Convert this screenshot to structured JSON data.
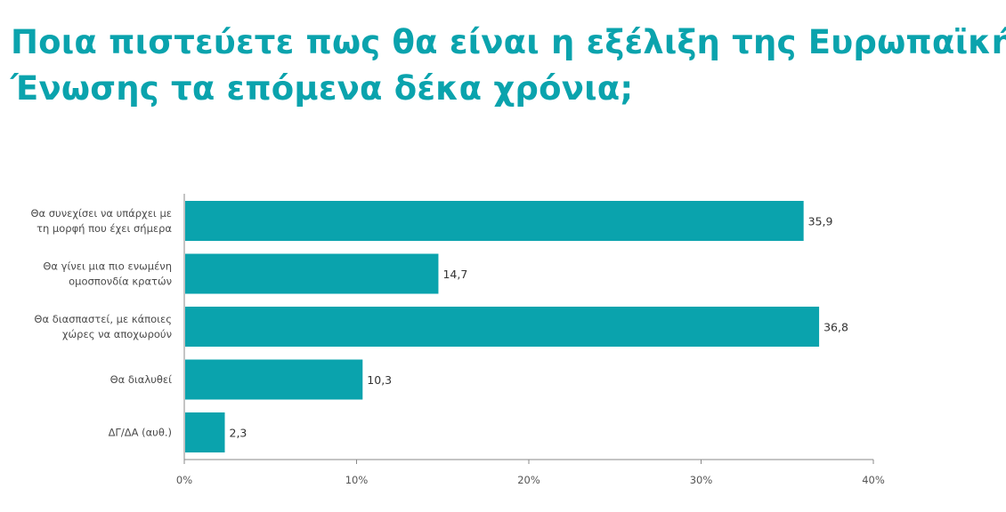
{
  "title": {
    "line1": "Ποια πιστεύετε πως θα είναι η εξέλιξη της Ευρωπαϊκής",
    "line2": "Ένωσης τα επόμενα δέκα χρόνια;"
  },
  "colors": {
    "title": "#0aa3ad",
    "bar": "#0aa3ad",
    "axis": "#888888"
  },
  "chart_data": {
    "type": "bar",
    "orientation": "horizontal",
    "title": "Ποια πιστεύετε πως θα είναι η εξέλιξη της Ευρωπαϊκής Ένωσης τα επόμενα δέκα χρόνια;",
    "categories": [
      [
        "Θα συνεχίσει να υπάρχει με",
        "τη μορφή που έχει σήμερα"
      ],
      [
        "Θα γίνει μια πιο ενωμένη",
        "ομοσπονδία κρατών"
      ],
      [
        "Θα διασπαστεί, με κάποιες",
        "χώρες να αποχωρούν"
      ],
      [
        "Θα διαλυθεί"
      ],
      [
        "ΔΓ/ΔΑ (αυθ.)"
      ]
    ],
    "values": [
      35.9,
      14.7,
      36.8,
      10.3,
      2.3
    ],
    "value_labels": [
      "35,9",
      "14,7",
      "36,8",
      "10,3",
      "2,3"
    ],
    "xlim": [
      0,
      40
    ],
    "xticks": [
      0,
      10,
      20,
      30,
      40
    ],
    "xtick_labels": [
      "0%",
      "10%",
      "20%",
      "30%",
      "40%"
    ],
    "xlabel": "",
    "ylabel": "",
    "grid": false,
    "legend": "none"
  }
}
